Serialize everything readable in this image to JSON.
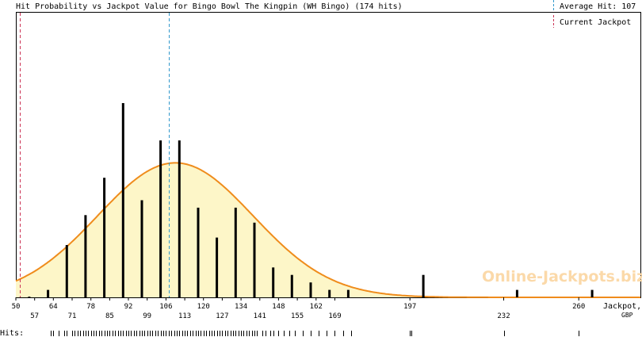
{
  "chart_data": {
    "type": "bar",
    "title": "Hit Probability vs Jackpot Value for Bingo Bowl The Kingpin (WH Bingo) (174 hits)",
    "xlabel": "Jackpot,",
    "xunit": "GBP",
    "xlim": [
      50,
      283
    ],
    "ylim": [
      0,
      26
    ],
    "x_ticks": [
      "50",
      "57",
      "64",
      "71",
      "78",
      "85",
      "92",
      "99",
      "106",
      "113",
      "120",
      "127",
      "134",
      "141",
      "148",
      "155",
      "162",
      "169",
      "197",
      "232",
      "260"
    ],
    "x_ticks_numeric": [
      50,
      57,
      64,
      71,
      78,
      85,
      92,
      99,
      106,
      113,
      120,
      127,
      134,
      141,
      148,
      155,
      162,
      169,
      197,
      232,
      260
    ],
    "bars": {
      "x": [
        55,
        62,
        69,
        76,
        83,
        90,
        97,
        104,
        111,
        118,
        125,
        132,
        139,
        146,
        153,
        160,
        167,
        174,
        202,
        237,
        265
      ],
      "values": [
        0.1,
        1.0,
        7.0,
        11.0,
        16.0,
        26.0,
        13.0,
        21.0,
        21.0,
        12.0,
        8.0,
        12.0,
        10.0,
        4.0,
        3.0,
        2.0,
        1.0,
        1.0,
        3.0,
        1.0,
        1.0
      ]
    },
    "distribution_curve": {
      "color": "#ef8c1c",
      "fill": "#fdf6c8",
      "mean": 109.5,
      "sd": 29,
      "peak": 18
    },
    "lines": {
      "average_hit": {
        "label": "Average Hit: 107",
        "value": 107,
        "color": "#3399cc"
      },
      "current_jackpot": {
        "label": "Current Jackpot",
        "value": 51.5,
        "color": "#cc3355"
      }
    },
    "hits_label": "Hits:",
    "hits_values": [
      63,
      64,
      66,
      68,
      69,
      71,
      72,
      73,
      74,
      75,
      76,
      77,
      78,
      79,
      80,
      81,
      82,
      83,
      84,
      85,
      86,
      87,
      88,
      89,
      90,
      91,
      92,
      93,
      94,
      95,
      96,
      97,
      98,
      99,
      100,
      101,
      102,
      103,
      104,
      105,
      106,
      107,
      108,
      109,
      110,
      111,
      112,
      113,
      114,
      115,
      116,
      117,
      118,
      119,
      120,
      121,
      122,
      123,
      124,
      125,
      126,
      127,
      128,
      129,
      130,
      131,
      132,
      133,
      134,
      135,
      136,
      137,
      138,
      139,
      140,
      142,
      143,
      145,
      146,
      148,
      150,
      152,
      154,
      157,
      160,
      163,
      166,
      169,
      172,
      175,
      197,
      197.5,
      232,
      260
    ],
    "watermark": "Online-Jackpots.biz"
  }
}
